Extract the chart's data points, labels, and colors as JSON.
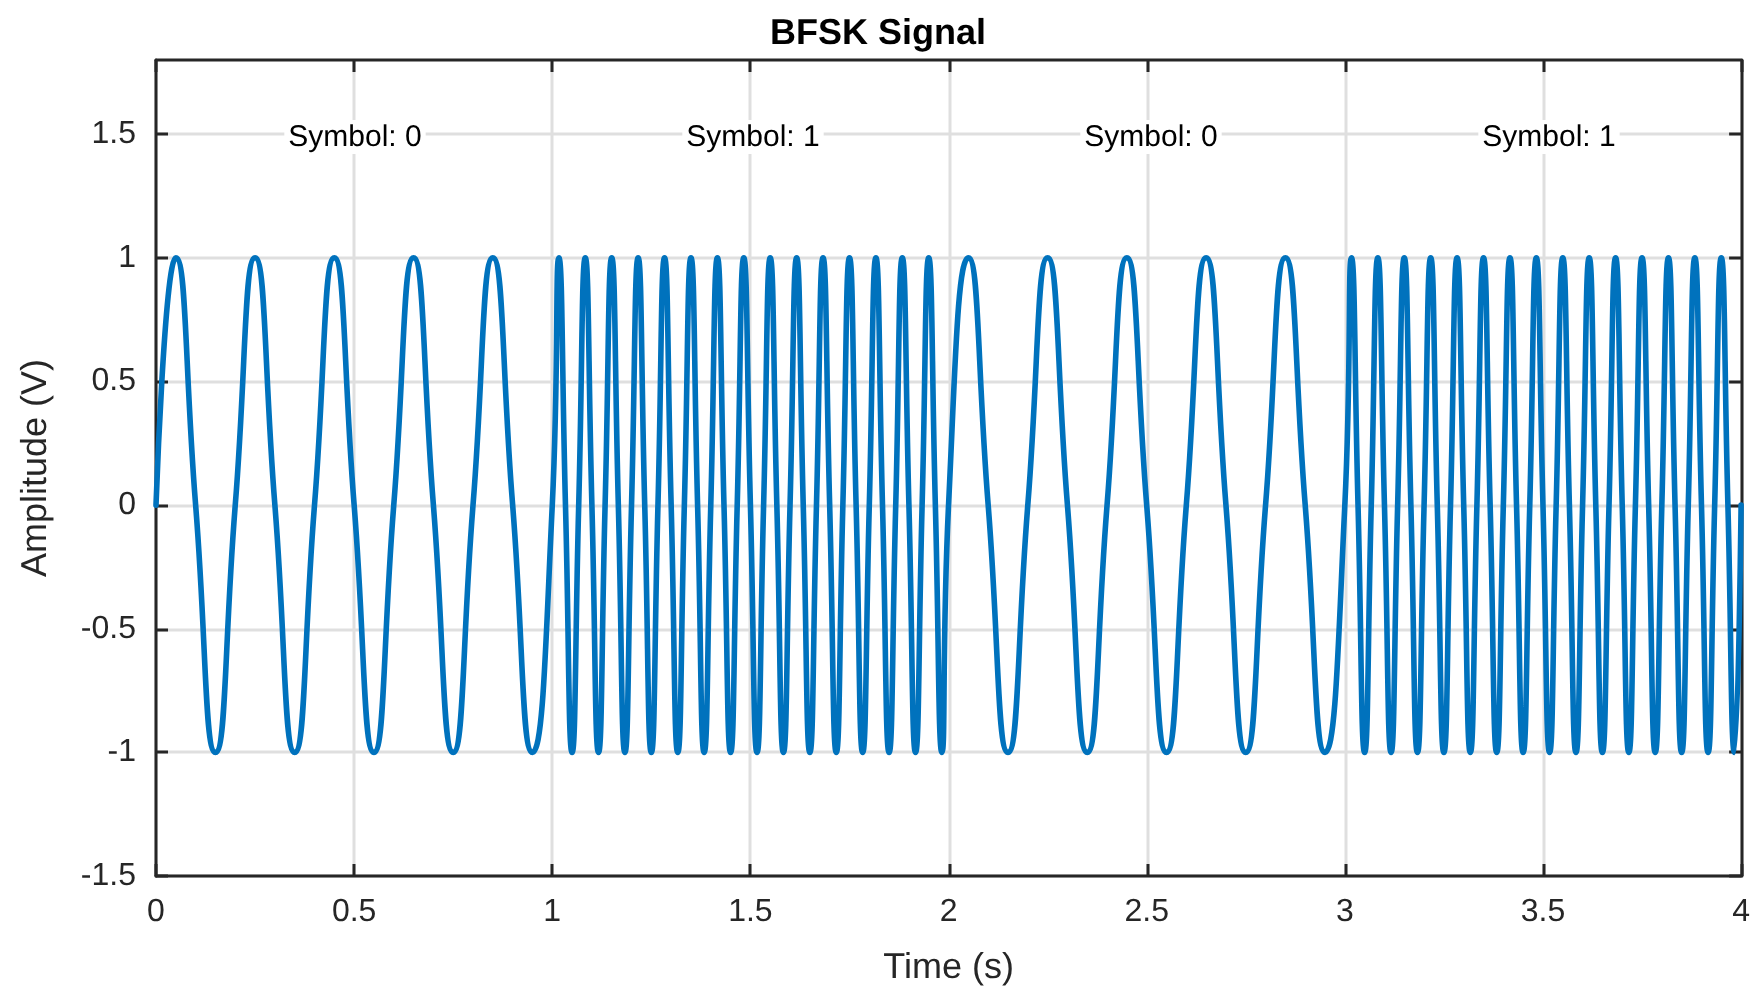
{
  "chart_data": {
    "type": "line",
    "title": "BFSK Signal",
    "xlabel": "Time (s)",
    "ylabel": "Amplitude (V)",
    "xlim": [
      0,
      4
    ],
    "xticks": [
      0,
      0.5,
      1,
      1.5,
      2,
      2.5,
      3,
      3.5,
      4
    ],
    "ylim": [
      -1.5,
      1.8
    ],
    "yticks": [
      -1.5,
      -1,
      -0.5,
      0,
      0.5,
      1,
      1.5
    ],
    "grid": true,
    "marker": "none",
    "line_style": "solid",
    "annotations": [
      "Symbol: 0",
      "Symbol: 1",
      "Symbol: 0",
      "Symbol: 1"
    ],
    "series": [
      {
        "color": "#0072bd",
        "x": [
          0,
          0.05,
          0.1,
          0.15,
          0.2,
          0.25,
          0.3,
          0.35,
          0.4,
          0.45,
          0.5,
          0.55,
          0.6,
          0.65,
          0.7,
          0.75,
          0.8,
          0.85,
          0.9,
          0.95,
          1,
          1.0167,
          1.0333,
          1.05,
          1.0667,
          1.0833,
          1.1,
          1.1167,
          1.1333,
          1.15,
          1.1667,
          1.1833,
          1.2,
          1.2167,
          1.2333,
          1.25,
          1.2667,
          1.2833,
          1.3,
          1.3167,
          1.3333,
          1.35,
          1.3667,
          1.3833,
          1.4,
          1.4167,
          1.4333,
          1.45,
          1.4667,
          1.4833,
          1.5,
          1.5167,
          1.5333,
          1.55,
          1.5667,
          1.5833,
          1.6,
          1.6167,
          1.6333,
          1.65,
          1.6667,
          1.6833,
          1.7,
          1.7167,
          1.7333,
          1.75,
          1.7667,
          1.7833,
          1.8,
          1.8167,
          1.8333,
          1.85,
          1.8667,
          1.8833,
          1.9,
          1.9167,
          1.9333,
          1.95,
          1.9667,
          1.9833,
          2,
          2.05,
          2.1,
          2.15,
          2.2,
          2.25,
          2.3,
          2.35,
          2.4,
          2.45,
          2.5,
          2.55,
          2.6,
          2.65,
          2.7,
          2.75,
          2.8,
          2.85,
          2.9,
          2.95,
          3,
          3.0167,
          3.0333,
          3.05,
          3.0667,
          3.0833,
          3.1,
          3.1167,
          3.1333,
          3.15,
          3.1667,
          3.1833,
          3.2,
          3.2167,
          3.2333,
          3.25,
          3.2667,
          3.2833,
          3.3,
          3.3167,
          3.3333,
          3.35,
          3.3667,
          3.3833,
          3.4,
          3.4167,
          3.4333,
          3.45,
          3.4667,
          3.4833,
          3.5,
          3.5167,
          3.5333,
          3.55,
          3.5667,
          3.5833,
          3.6,
          3.6167,
          3.6333,
          3.65,
          3.6667,
          3.6833,
          3.7,
          3.7167,
          3.7333,
          3.75,
          3.7667,
          3.7833,
          3.8,
          3.8167,
          3.8333,
          3.85,
          3.8667,
          3.8833,
          3.9,
          3.9167,
          3.9333,
          3.95,
          3.9667,
          3.9833,
          4
        ],
        "values": [
          0,
          1,
          0,
          -1,
          0,
          1,
          0,
          -1,
          0,
          1,
          0,
          -1,
          0,
          1,
          0,
          -1,
          0,
          1,
          0,
          -1,
          0,
          1,
          0,
          -1,
          0,
          1,
          0,
          -1,
          0,
          1,
          0,
          -1,
          0,
          1,
          0,
          -1,
          0,
          1,
          0,
          -1,
          0,
          1,
          0,
          -1,
          0,
          1,
          0,
          -1,
          0,
          1,
          0,
          -1,
          0,
          1,
          0,
          -1,
          0,
          1,
          0,
          -1,
          0,
          1,
          0,
          -1,
          0,
          1,
          0,
          -1,
          0,
          1,
          0,
          -1,
          0,
          1,
          0,
          -1,
          0,
          1,
          0,
          -1,
          0,
          1,
          0,
          -1,
          0,
          1,
          0,
          -1,
          0,
          1,
          0,
          -1,
          0,
          1,
          0,
          -1,
          0,
          1,
          0,
          -1,
          0,
          1,
          0,
          -1,
          0,
          1,
          0,
          -1,
          0,
          1,
          0,
          -1,
          0,
          1,
          0,
          -1,
          0,
          1,
          0,
          -1,
          0,
          1,
          0,
          -1,
          0,
          1,
          0,
          -1,
          0,
          1,
          0,
          -1,
          0,
          1,
          0,
          -1,
          0,
          1,
          0,
          -1,
          0,
          1,
          0,
          -1,
          0,
          1,
          0,
          -1,
          0,
          1,
          0,
          -1,
          0,
          1,
          0,
          -1,
          0,
          1,
          0,
          -1,
          0
        ]
      }
    ]
  }
}
